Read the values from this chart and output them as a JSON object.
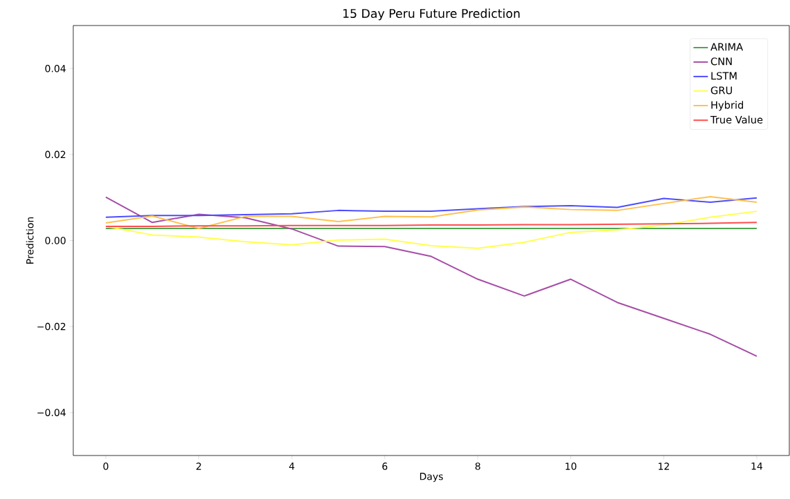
{
  "chart_data": {
    "type": "line",
    "title": "15 Day Peru Future Prediction",
    "xlabel": "Days",
    "ylabel": "Prediction",
    "x": [
      0,
      1,
      2,
      3,
      4,
      5,
      6,
      7,
      8,
      9,
      10,
      11,
      12,
      13,
      14
    ],
    "series": [
      {
        "name": "ARIMA",
        "color": "#4da64d",
        "values": [
          0.0028,
          0.0028,
          0.0028,
          0.0028,
          0.0028,
          0.0028,
          0.0028,
          0.0028,
          0.0028,
          0.0028,
          0.0028,
          0.0028,
          0.0028,
          0.0028,
          0.0028
        ]
      },
      {
        "name": "CNN",
        "color": "#a64ca6",
        "values": [
          0.0101,
          0.0042,
          0.0061,
          0.0053,
          0.0027,
          -0.0013,
          -0.0014,
          -0.0037,
          -0.009,
          -0.0129,
          -0.009,
          -0.0144,
          -0.0181,
          -0.0218,
          -0.0269
        ]
      },
      {
        "name": "LSTM",
        "color": "#4c4cff",
        "values": [
          0.0054,
          0.0058,
          0.0058,
          0.006,
          0.0062,
          0.007,
          0.0068,
          0.0068,
          0.0074,
          0.0079,
          0.0081,
          0.0077,
          0.0098,
          0.0089,
          0.0099
        ]
      },
      {
        "name": "GRU",
        "color": "#ffff4c",
        "values": [
          0.0033,
          0.0013,
          0.0008,
          -0.0003,
          -0.001,
          0.0001,
          0.0003,
          -0.0012,
          -0.0018,
          -0.0004,
          0.0019,
          0.0025,
          0.0036,
          0.0054,
          0.0068
        ]
      },
      {
        "name": "Hybrid",
        "color": "#ffc04d",
        "values": [
          0.0041,
          0.0057,
          0.0028,
          0.0056,
          0.0056,
          0.0044,
          0.0056,
          0.0055,
          0.0071,
          0.0078,
          0.0072,
          0.007,
          0.0086,
          0.0102,
          0.0089
        ]
      },
      {
        "name": "True Value",
        "color": "#ff4c4c",
        "values": [
          0.0033,
          0.0033,
          0.0034,
          0.0034,
          0.0035,
          0.0035,
          0.0035,
          0.0036,
          0.0036,
          0.0037,
          0.0037,
          0.0038,
          0.0039,
          0.004,
          0.0042
        ]
      }
    ],
    "xlim": [
      -0.7,
      14.7
    ],
    "ylim": [
      -0.05,
      0.05
    ],
    "xticks": [
      0,
      2,
      4,
      6,
      8,
      10,
      12,
      14
    ],
    "yticks": [
      {
        "value": -0.04,
        "label": "−0.04"
      },
      {
        "value": -0.02,
        "label": "−0.02"
      },
      {
        "value": 0,
        "label": "0.00"
      },
      0.02,
      0.04
    ],
    "legend": "top right",
    "grid": false,
    "marker": "none",
    "line_style": "solid"
  }
}
